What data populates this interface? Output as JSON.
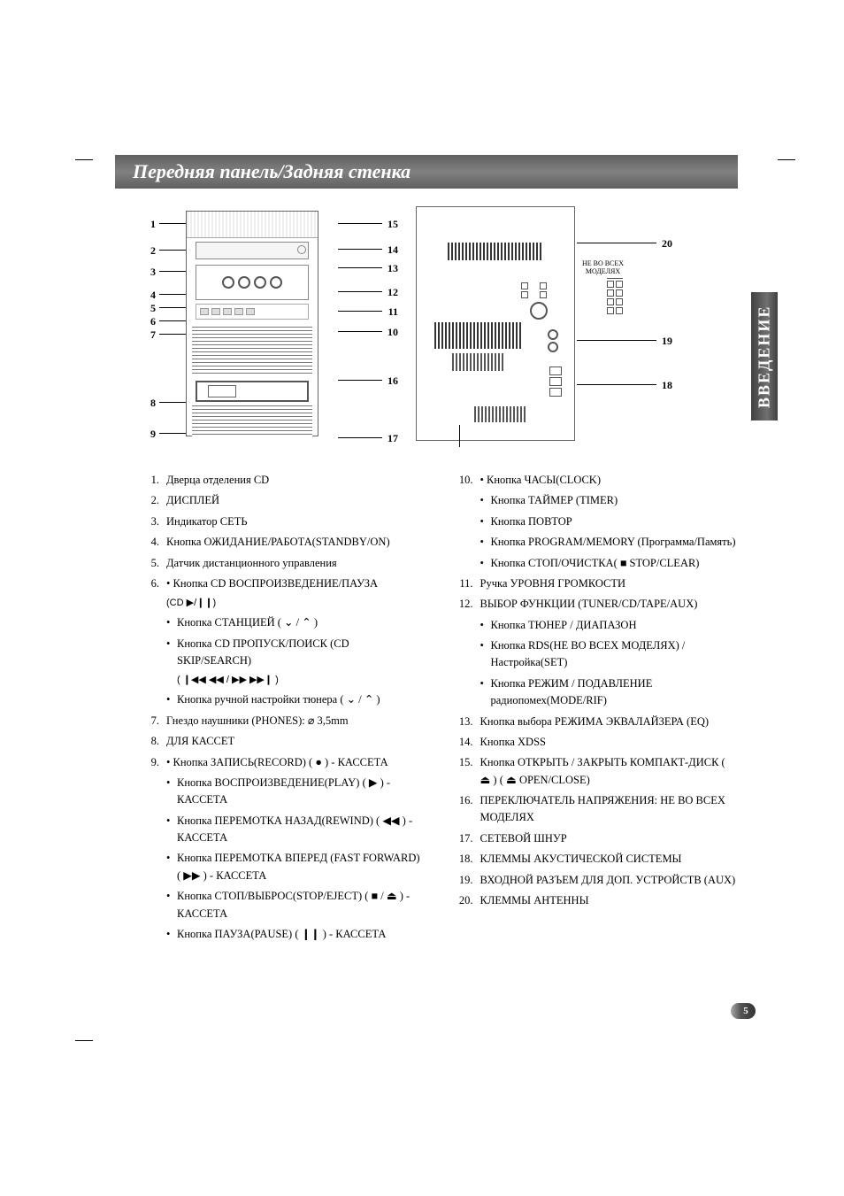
{
  "header": {
    "title": "Передняя панель/Задняя стенка"
  },
  "side_tab": "ВВЕДЕНИЕ",
  "page_number": "5",
  "front_callouts_left": [
    "1",
    "2",
    "3",
    "4",
    "5",
    "6",
    "7",
    "8",
    "9"
  ],
  "front_callouts_right": [
    "15",
    "14",
    "13",
    "12",
    "11",
    "10",
    "16",
    "17"
  ],
  "back_callouts": [
    "20",
    "19",
    "18"
  ],
  "back_note": "НЕ ВО ВСЕХ МОДЕЛЯХ",
  "left_col": [
    {
      "n": "1.",
      "t": "Дверца отделения CD"
    },
    {
      "n": "2.",
      "t": "ДИСПЛЕЙ"
    },
    {
      "n": "3.",
      "t": "Индикатор СЕТЬ"
    },
    {
      "n": "4.",
      "t": "Кнопка ОЖИДАНИЕ/РАБОТА(STANDBY/ON)"
    },
    {
      "n": "5.",
      "t": "Датчик дистанционного управления"
    },
    {
      "n": "6.",
      "t": "• Кнопка CD ВОСПРОИЗВЕДЕНИЕ/ПАУЗА",
      "extra": "(CD ▶/❙❙)"
    },
    {
      "sub": true,
      "t": "Кнопка СТАНЦИЕЙ ( ⌄ / ⌃ )"
    },
    {
      "sub": true,
      "t": "Кнопка CD ПРОПУСК/ПОИСК (CD SKIP/SEARCH)",
      "extra": "( ❙◀◀ ◀◀ / ▶▶ ▶▶❙ )"
    },
    {
      "sub": true,
      "t": "Кнопка ручной настройки тюнера ( ⌄ / ⌃ )"
    },
    {
      "n": "7.",
      "t": "Гнездо наушники (PHONES): ⌀ 3,5mm"
    },
    {
      "n": "8.",
      "t": "ДЛЯ КАССЕТ"
    },
    {
      "n": "9.",
      "t": "• Кнопка ЗАПИСЬ(RECORD) ( ● ) - КАССЕТА"
    },
    {
      "sub": true,
      "t": "Кнопка ВОСПРОИЗВЕДЕНИЕ(PLAY) ( ▶ ) - КАССЕТА"
    },
    {
      "sub": true,
      "t": "Кнопка ПЕРЕМОТКА НАЗАД(REWIND) ( ◀◀ ) - КАССЕТА"
    },
    {
      "sub": true,
      "t": "Кнопка ПЕРЕМОТКА ВПЕРЕД (FAST FORWARD) ( ▶▶ ) - КАССЕТА"
    },
    {
      "sub": true,
      "t": "Кнопка СТОП/ВЫБРОС(STOP/EJECT) ( ■ / ⏏ ) - КАССЕТА"
    },
    {
      "sub": true,
      "t": "Кнопка ПАУЗА(PAUSE) ( ❙❙ ) - КАССЕТА"
    }
  ],
  "right_col": [
    {
      "n": "10.",
      "t": "• Кнопка ЧАСЫ(CLOCK)"
    },
    {
      "sub": true,
      "t": "Кнопка ТАЙМЕР (TIMER)"
    },
    {
      "sub": true,
      "t": "Кнопка ПОВТОР"
    },
    {
      "sub": true,
      "t": "Кнопка PROGRAM/MEMORY (Программа/Память)"
    },
    {
      "sub": true,
      "t": "Кнопка СТОП/ОЧИСТКА( ■ STOP/CLEAR)"
    },
    {
      "n": "11.",
      "t": "Ручка УРОВНЯ ГРОМКОСТИ"
    },
    {
      "n": "12.",
      "t": "ВЫБОР ФУНКЦИИ (TUNER/CD/TAPE/AUX)"
    },
    {
      "sub": true,
      "t": "Кнопка ТЮНЕР / ДИАПАЗОН"
    },
    {
      "sub": true,
      "t": "Кнопка RDS(НЕ ВО ВСЕХ МОДЕЛЯХ) /Настройка(SET)"
    },
    {
      "sub": true,
      "t": "Кнопка РЕЖИМ / ПОДАВЛЕНИЕ радиопомех(MODE/RIF)"
    },
    {
      "n": "13.",
      "t": "Кнопка выбора РЕЖИМА ЭКВАЛАЙЗЕРА (EQ)"
    },
    {
      "n": "14.",
      "t": "Кнопка XDSS"
    },
    {
      "n": "15.",
      "t": "Кнопка ОТКРЫТЬ / ЗАКРЫТЬ КОМПАКТ-ДИСК ( ⏏ ) ( ⏏ OPEN/CLOSE)"
    },
    {
      "n": "16.",
      "t": "ПЕРЕКЛЮЧАТЕЛЬ НАПРЯЖЕНИЯ: НЕ ВО ВСЕХ МОДЕЛЯХ"
    },
    {
      "n": "17.",
      "t": "СЕТЕВОЙ ШНУР"
    },
    {
      "n": "18.",
      "t": "КЛЕММЫ АКУСТИЧЕСКОЙ СИСТЕМЫ"
    },
    {
      "n": "19.",
      "t": "ВХОДНОЙ РАЗЪЕМ ДЛЯ ДОП. УСТРОЙСТВ (AUX)"
    },
    {
      "n": "20.",
      "t": "КЛЕММЫ АНТЕННЫ"
    }
  ],
  "colors": {
    "header_gradient_from": "#606060",
    "header_gradient_to": "#808080",
    "text": "#000000",
    "background": "#ffffff",
    "sidebar_gradient": "#404040"
  }
}
